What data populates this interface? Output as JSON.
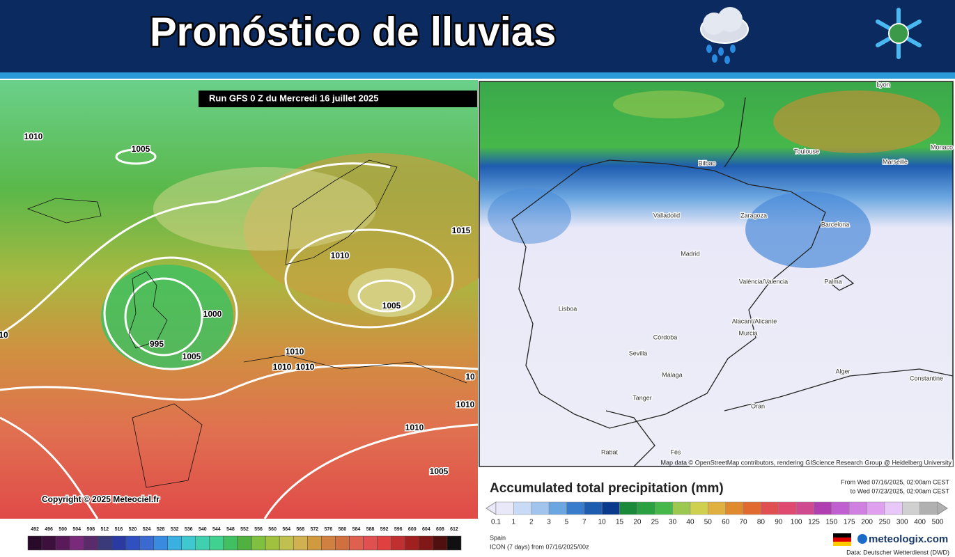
{
  "header": {
    "title": "Pronóstico de lluvias"
  },
  "left_map": {
    "run_label": "Run GFS 0 Z du Mercredi 16 juillet 2025",
    "copyright": "Copyright © 2025 Meteociel.fr",
    "isobar_labels": [
      "1010",
      "1005",
      "1015",
      "1010",
      "1000",
      "1005",
      "995",
      "1005",
      "1010",
      "1010",
      "1010",
      "10",
      "1010",
      "1005",
      "10",
      "1010"
    ],
    "scale": {
      "labels": [
        "492",
        "496",
        "500",
        "504",
        "508",
        "512",
        "516",
        "520",
        "524",
        "528",
        "532",
        "536",
        "540",
        "544",
        "548",
        "552",
        "556",
        "560",
        "564",
        "568",
        "572",
        "576",
        "580",
        "584",
        "588",
        "592",
        "596",
        "600",
        "604",
        "608",
        "612"
      ],
      "colors": [
        "#2a0a2a",
        "#3d0f3d",
        "#5a1a5a",
        "#7a2a7a",
        "#5a2a6a",
        "#3a3a7a",
        "#2a3aa0",
        "#3050c0",
        "#3a6ad0",
        "#3a8ae0",
        "#3ab0e0",
        "#40c8d0",
        "#40d0b0",
        "#40d090",
        "#40c060",
        "#50b040",
        "#80c040",
        "#a0c040",
        "#c0c050",
        "#d0b050",
        "#d09a40",
        "#d08040",
        "#d07040",
        "#e06050",
        "#e05050",
        "#e04040",
        "#c03030",
        "#a02020",
        "#801818",
        "#501010",
        "#101010"
      ]
    }
  },
  "right_map": {
    "cities": [
      "Lyon",
      "Toulouse",
      "Marseille",
      "Monaco",
      "Bilbao",
      "Valladolid",
      "Zaragoza",
      "Barcelona",
      "Madrid",
      "València/Valencia",
      "Palma",
      "Lisboa",
      "Alacant/Alicante",
      "Murcia",
      "Córdoba",
      "Sevilla",
      "Málaga",
      "Tanger",
      "Alger",
      "Constantine",
      "Oran",
      "Rabat",
      "Fès"
    ],
    "attribution": "Map data © OpenStreetMap contributors, rendering GIScience Research Group @ Heidelberg University",
    "legend": {
      "title": "Accumulated total precipitation (mm)",
      "from": "From Wed 07/16/2025, 02:00am CEST",
      "to": "to Wed 07/23/2025, 02:00am CEST",
      "ticks": [
        "0.1",
        "1",
        "2",
        "3",
        "5",
        "7",
        "10",
        "15",
        "20",
        "25",
        "30",
        "40",
        "50",
        "60",
        "70",
        "80",
        "90",
        "100",
        "125",
        "150",
        "175",
        "200",
        "250",
        "300",
        "400",
        "500"
      ],
      "colors": [
        "#e8e8f8",
        "#c8daf5",
        "#a0c4ee",
        "#6aa6e0",
        "#3a7ccc",
        "#1e5cb0",
        "#0a3a8c",
        "#1a8a3a",
        "#2aa040",
        "#46b84a",
        "#9ac850",
        "#d0d050",
        "#e0b040",
        "#e08a30",
        "#e06a30",
        "#e05050",
        "#e04a70",
        "#d04a90",
        "#b040b0",
        "#c060d0",
        "#d080e0",
        "#e0a0f0",
        "#e8c8f8",
        "#d0d0d0",
        "#b0b0b0"
      ]
    },
    "footer": {
      "region": "Spain",
      "model": "ICON (7 days) from 07/16/2025/00z",
      "brand": "meteologix.com",
      "data_source": "Data: Deutscher Wetterdienst (DWD)"
    }
  }
}
